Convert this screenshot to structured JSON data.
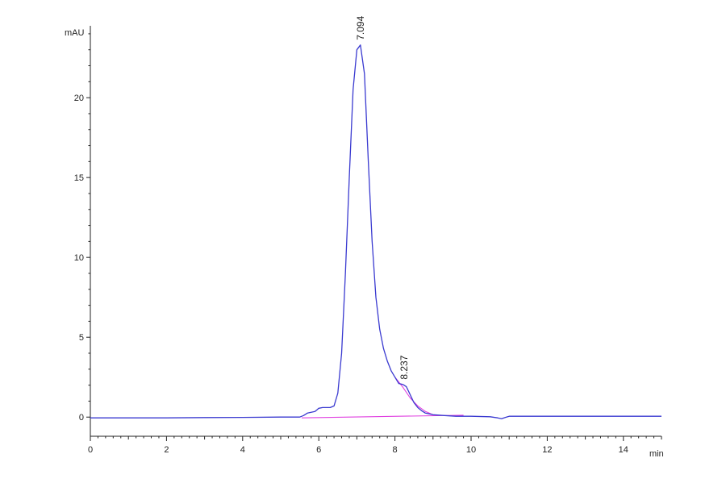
{
  "chart_data": {
    "type": "line",
    "title": "",
    "xlabel": "min",
    "ylabel": "mAU",
    "xlim": [
      0,
      15
    ],
    "ylim": [
      -1.2,
      24.5
    ],
    "x_ticks": [
      0,
      2,
      4,
      6,
      8,
      10,
      12,
      14
    ],
    "y_ticks": [
      0,
      5,
      10,
      15,
      20
    ],
    "grid": false,
    "legend": "none",
    "colors": {
      "signal": "#3a3ad0",
      "baseline": "#e040e0",
      "axis": "#222222"
    },
    "series": [
      {
        "role": "signal",
        "x": [
          0,
          1,
          2,
          3,
          4,
          5,
          5.5,
          5.6,
          5.7,
          5.8,
          5.9,
          6.0,
          6.1,
          6.2,
          6.3,
          6.4,
          6.5,
          6.6,
          6.7,
          6.8,
          6.9,
          7.0,
          7.094,
          7.2,
          7.3,
          7.4,
          7.5,
          7.6,
          7.7,
          7.8,
          7.9,
          8.0,
          8.1,
          8.2,
          8.237,
          8.3,
          8.4,
          8.5,
          8.6,
          8.7,
          8.8,
          9.0,
          9.3,
          9.6,
          10.0,
          10.5,
          10.7,
          10.8,
          10.9,
          11.0,
          11.5,
          12,
          13,
          14,
          15
        ],
        "y": [
          -0.05,
          -0.05,
          -0.05,
          -0.03,
          -0.02,
          0.0,
          0.0,
          0.1,
          0.25,
          0.3,
          0.35,
          0.55,
          0.6,
          0.6,
          0.6,
          0.7,
          1.5,
          4.0,
          9.0,
          15.0,
          20.5,
          23.0,
          23.3,
          21.5,
          16.0,
          11.0,
          7.5,
          5.5,
          4.3,
          3.5,
          2.9,
          2.5,
          2.1,
          2.05,
          2.0,
          1.9,
          1.4,
          0.9,
          0.6,
          0.4,
          0.25,
          0.15,
          0.1,
          0.05,
          0.05,
          0.02,
          -0.05,
          -0.1,
          -0.02,
          0.05,
          0.05,
          0.05,
          0.05,
          0.05,
          0.05
        ]
      },
      {
        "role": "baseline",
        "x": [
          5.55,
          9.8
        ],
        "y": [
          -0.05,
          0.12
        ]
      },
      {
        "role": "tangent-skim",
        "x": [
          8.0,
          8.2,
          8.4,
          8.6,
          8.8,
          9.0
        ],
        "y": [
          2.5,
          1.9,
          1.2,
          0.7,
          0.35,
          0.15
        ]
      }
    ],
    "peak_labels": [
      {
        "text": "7.094",
        "x": 7.094,
        "y": 23.3
      },
      {
        "text": "8.237",
        "x": 8.237,
        "y": 2.05
      }
    ]
  }
}
